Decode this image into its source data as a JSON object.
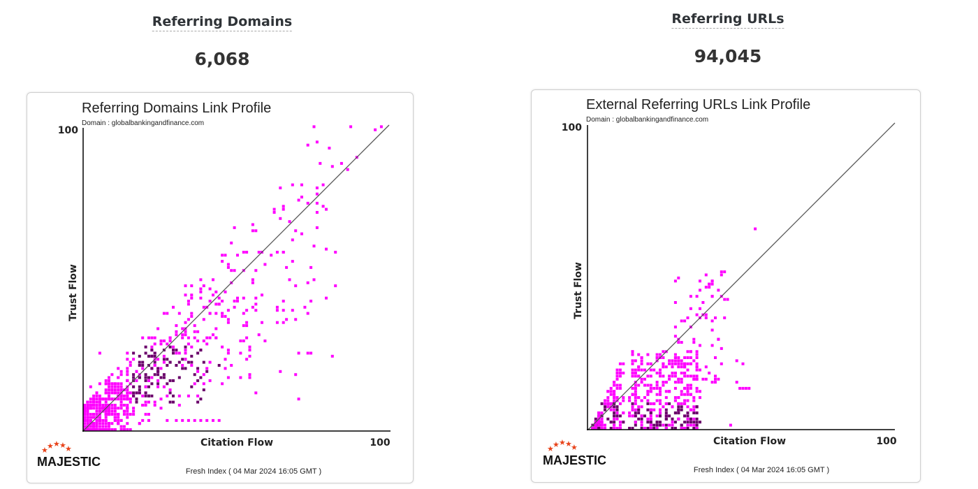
{
  "stats": [
    {
      "title": "Referring Domains",
      "value": "6,068"
    },
    {
      "title": "Referring URLs",
      "value": "94,045"
    }
  ],
  "colors": {
    "point": "#ff00ff",
    "point_dark": "#6a006a",
    "diagonal": "#555555",
    "axis": "#000000",
    "logo_star": "#e8431a"
  },
  "chart_data": [
    {
      "type": "scatter",
      "title": "Referring Domains Link Profile",
      "subtitle": "Domain : globalbankingandfinance.com",
      "xlabel": "Citation Flow",
      "ylabel": "Trust Flow",
      "xlim": [
        0,
        100
      ],
      "ylim": [
        0,
        100
      ],
      "x_tick_label": "100",
      "y_tick_label": "100",
      "diagonal": [
        [
          0,
          0
        ],
        [
          100,
          100
        ]
      ],
      "footer": "Fresh Index ( 04 Mar 2024 16:05 GMT )",
      "logo": "MAJESTIC",
      "density": {
        "center": [
          30,
          15
        ],
        "x_range": [
          0,
          97
        ],
        "y_range": [
          0,
          100
        ],
        "count": 900
      },
      "points": [
        [
          5,
          25
        ],
        [
          2,
          14
        ],
        [
          40,
          20
        ],
        [
          54,
          17
        ],
        [
          70,
          10
        ],
        [
          86,
          85
        ],
        [
          89,
          89
        ],
        [
          95,
          98
        ],
        [
          97,
          99
        ],
        [
          76,
          94
        ],
        [
          80,
          92
        ],
        [
          84,
          87
        ],
        [
          55,
          40
        ],
        [
          72,
          40
        ],
        [
          65,
          35
        ],
        [
          30,
          3
        ],
        [
          32,
          3
        ],
        [
          34,
          3
        ],
        [
          36,
          3
        ],
        [
          38,
          3
        ],
        [
          40,
          3
        ],
        [
          42,
          3
        ],
        [
          44,
          3
        ],
        [
          5,
          15
        ],
        [
          8,
          15
        ],
        [
          10,
          15
        ],
        [
          12,
          15
        ]
      ]
    },
    {
      "type": "scatter",
      "title": "External Referring URLs Link Profile",
      "subtitle": "Domain : globalbankingandfinance.com",
      "xlabel": "Citation Flow",
      "ylabel": "Trust Flow",
      "xlim": [
        0,
        100
      ],
      "ylim": [
        0,
        100
      ],
      "x_tick_label": "100",
      "y_tick_label": "100",
      "diagonal": [
        [
          0,
          0
        ],
        [
          100,
          100
        ]
      ],
      "footer": "Fresh Index ( 04 Mar 2024 16:05 GMT )",
      "logo": "MAJESTIC",
      "density_regions": [
        {
          "x_range": [
            1,
            11
          ],
          "y_range": [
            0,
            24
          ],
          "count": 160,
          "wedge": true
        },
        {
          "x_range": [
            13,
            36
          ],
          "y_range": [
            0,
            25
          ],
          "count": 360,
          "wedge": false
        },
        {
          "x_range": [
            28,
            44
          ],
          "y_range": [
            15,
            50
          ],
          "count": 70,
          "wedge": false
        }
      ],
      "points": [
        [
          54,
          65
        ],
        [
          43,
          50
        ],
        [
          43,
          51
        ],
        [
          44,
          51
        ],
        [
          43,
          43
        ],
        [
          44,
          42
        ],
        [
          45,
          42
        ],
        [
          40,
          48
        ],
        [
          48,
          22
        ],
        [
          50,
          21
        ],
        [
          48,
          15
        ],
        [
          49,
          13
        ],
        [
          50,
          13
        ],
        [
          51,
          13
        ],
        [
          52,
          13
        ],
        [
          46,
          1
        ],
        [
          39,
          47
        ],
        [
          40,
          47
        ],
        [
          36,
          36
        ]
      ]
    }
  ]
}
